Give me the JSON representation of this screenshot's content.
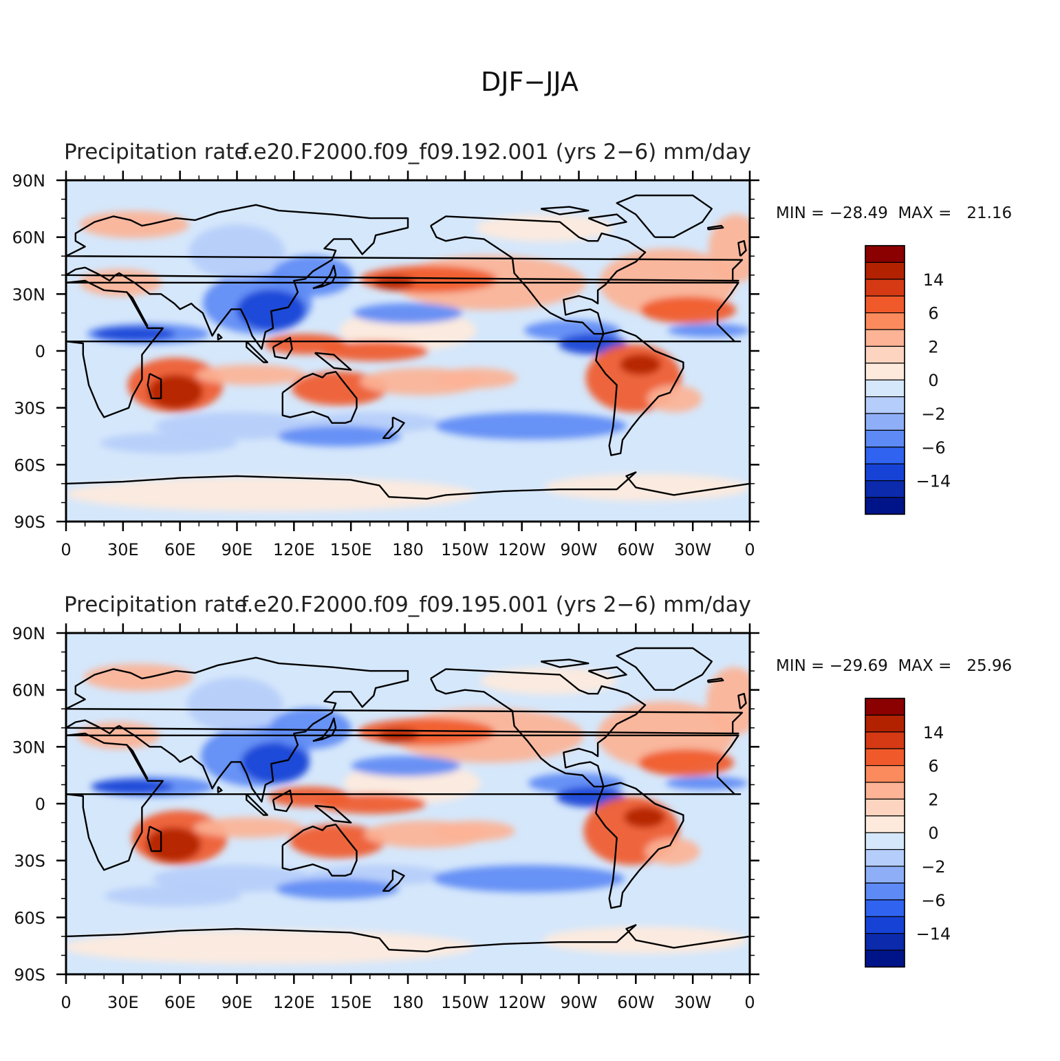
{
  "title": "DJF-JJA",
  "lat_labels": [
    "90N",
    "60N",
    "30N",
    "0",
    "30S",
    "60S",
    "90S"
  ],
  "lon_labels": [
    "0",
    "30E",
    "60E",
    "90E",
    "120E",
    "150E",
    "180",
    "150W",
    "120W",
    "90W",
    "60W",
    "30W",
    "0"
  ],
  "panels": [
    {
      "left_title": "Precipitation rate",
      "case_title": "f.e20.F2000.f09_f09.192.001 (yrs 2-6) mm/day",
      "min_max": "MIN = -28.49  MAX =   21.16"
    },
    {
      "left_title": "Precipitation rate",
      "case_title": "f.e20.F2000.f09_f09.195.001 (yrs 2-6) mm/day",
      "min_max": "MIN = -29.69  MAX =   25.96"
    }
  ],
  "colorbar": {
    "colors": [
      "#8b0000",
      "#b22200",
      "#d53a14",
      "#f05a2a",
      "#fb8a5c",
      "#fcb396",
      "#fdd4bf",
      "#feeadc",
      "#d5e7fb",
      "#b5cdfa",
      "#8eaff8",
      "#5d8af5",
      "#2f63f0",
      "#1643d6",
      "#0b2aac",
      "#00148a"
    ],
    "labels": [
      "14",
      "6",
      "2",
      "0",
      "-2",
      "-6",
      "-14"
    ]
  },
  "colors": {
    "coast": "#000000",
    "neutral_pos": "#feeadc",
    "neutral_neg": "#d5e7fb",
    "light_red": "#fcb396",
    "red": "#f05a2a",
    "dark_red": "#b22200",
    "light_blue": "#b5cdfa",
    "blue": "#5d8af5",
    "dark_blue": "#1643d6"
  }
}
